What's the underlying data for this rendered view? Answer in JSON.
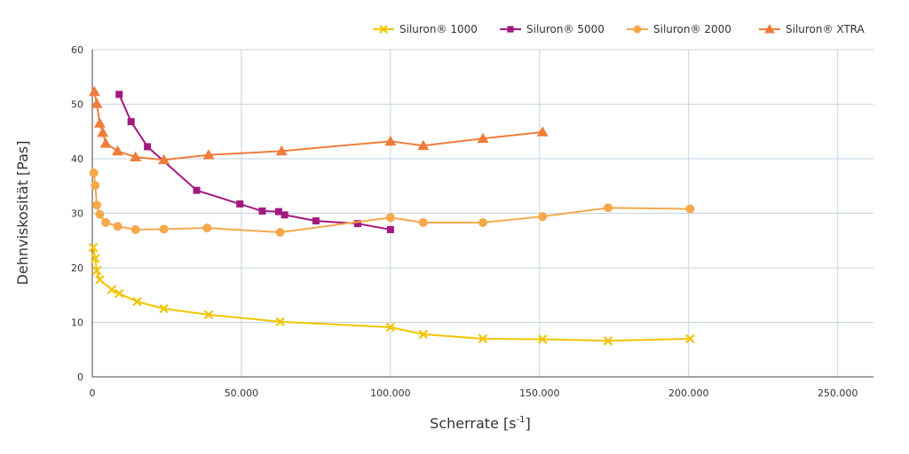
{
  "chart_data": {
    "type": "line",
    "title": "",
    "xlabel": "Scherrate [s",
    "xlabel_sup": "-1",
    "xlabel_end": "]",
    "ylabel": "Dehnviskosität [Pas]",
    "xlim": [
      0,
      262000
    ],
    "ylim": [
      0,
      60
    ],
    "x_ticks": [
      0,
      50000,
      100000,
      150000,
      200000,
      250000
    ],
    "x_tick_labels": [
      "0",
      "50.000",
      "100.000",
      "150.000",
      "200.000",
      "250.000"
    ],
    "y_ticks": [
      0,
      10,
      20,
      30,
      40,
      50,
      60
    ],
    "y_tick_labels": [
      "0",
      "10",
      "20",
      "30",
      "40",
      "50",
      "60"
    ],
    "grid": true,
    "legend_position": "top-right",
    "series": [
      {
        "name": "Siluron® 1000",
        "color": "#f2c500",
        "marker": "x",
        "x": [
          300,
          1000,
          1500,
          2500,
          6500,
          9000,
          15000,
          24000,
          39000,
          63000,
          100000,
          111000,
          131000,
          151000,
          173000,
          200500
        ],
        "y": [
          23.7,
          21.7,
          19.5,
          17.8,
          16,
          15.3,
          13.8,
          12.5,
          11.4,
          10.1,
          9.1,
          7.8,
          7,
          6.9,
          6.6,
          7
        ]
      },
      {
        "name": "Siluron® 5000",
        "color": "#a3187f",
        "marker": "square",
        "x": [
          9000,
          13000,
          18500,
          35000,
          49500,
          57000,
          62500,
          64500,
          75000,
          89000,
          100000
        ],
        "y": [
          51.8,
          46.8,
          42.2,
          34.2,
          31.7,
          30.4,
          30.3,
          29.7,
          28.6,
          28.1,
          27
        ]
      },
      {
        "name": "Siluron® 2000",
        "color": "#f5a94c",
        "marker": "circle",
        "x": [
          500,
          1000,
          1500,
          2500,
          4500,
          8500,
          14500,
          24000,
          38500,
          63000,
          100000,
          111000,
          131000,
          151000,
          173000,
          200500
        ],
        "y": [
          37.4,
          35.1,
          31.5,
          29.8,
          28.3,
          27.6,
          27,
          27.1,
          27.3,
          26.5,
          29.2,
          28.3,
          28.3,
          29.4,
          31,
          30.8
        ]
      },
      {
        "name": "Siluron® XTRA",
        "color": "#ee7d3b",
        "marker": "triangle",
        "x": [
          700,
          1500,
          2500,
          3500,
          4500,
          8500,
          14500,
          24000,
          39000,
          63500,
          100000,
          111000,
          131000,
          151000
        ],
        "y": [
          52.3,
          50.1,
          46.5,
          44.8,
          42.8,
          41.4,
          40.3,
          39.8,
          40.7,
          41.4,
          43.2,
          42.4,
          43.7,
          44.9
        ]
      }
    ]
  }
}
